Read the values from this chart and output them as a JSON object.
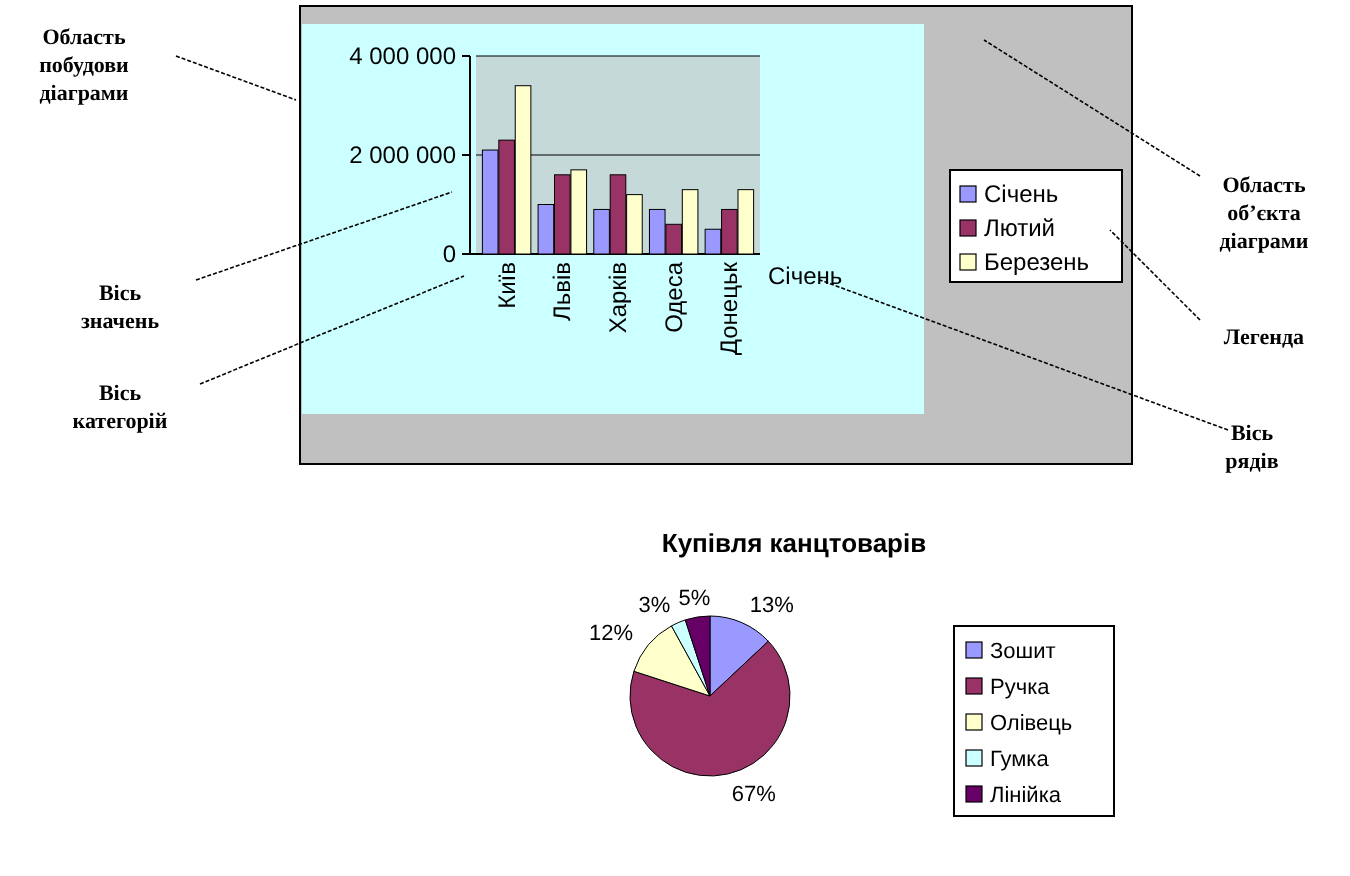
{
  "chart_data": [
    {
      "type": "bar",
      "categories": [
        "Київ",
        "Львів",
        "Харків",
        "Одеса",
        "Донецьк"
      ],
      "series": [
        {
          "name": "Січень",
          "color": "#9999ff",
          "values": [
            2100000,
            1000000,
            900000,
            900000,
            500000
          ]
        },
        {
          "name": "Лютий",
          "color": "#993366",
          "values": [
            2300000,
            1600000,
            1600000,
            600000,
            900000
          ]
        },
        {
          "name": "Березень",
          "color": "#ffffcc",
          "values": [
            3400000,
            1700000,
            1200000,
            1300000,
            1300000
          ]
        }
      ],
      "ylim": [
        0,
        4000000
      ],
      "yticks": [
        0,
        {
          "value": 2000000,
          "label": "2 000 000"
        },
        {
          "value": 4000000,
          "label": "4 000 000"
        }
      ],
      "grid": "y",
      "legend": "right",
      "annotations": [
        "Область побудови діаграми",
        "Вісь значень",
        "Вісь категорій",
        "Область об’єкта діаграми",
        "Легенда",
        "Вісь рядів",
        "Січень"
      ]
    },
    {
      "type": "pie",
      "title": "Купівля канцтоварів",
      "categories": [
        "Зошит",
        "Ручка",
        "Олівець",
        "Гумка",
        "Лінійка"
      ],
      "values": [
        13,
        67,
        12,
        3,
        5
      ],
      "colors": [
        "#9999ff",
        "#993366",
        "#ffffcc",
        "#ccffff",
        "#660066"
      ],
      "value_labels": [
        "13%",
        "67%",
        "12%",
        "3%",
        "5%"
      ],
      "legend": "right"
    }
  ]
}
